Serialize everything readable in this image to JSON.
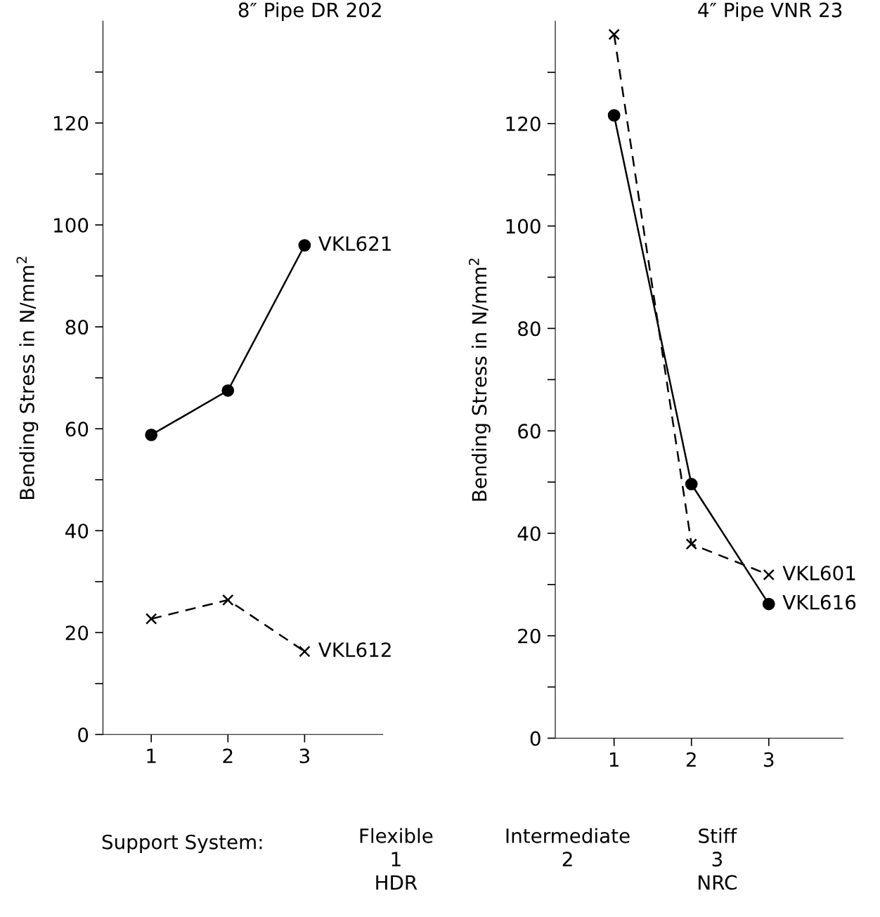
{
  "chart_data": [
    {
      "type": "line",
      "title": "8″ Pipe DR 202",
      "ylabel": "Bending Stress in N/mm$^{2}$",
      "x": [
        1,
        2,
        3
      ],
      "xlim": [
        0.37,
        4.02
      ],
      "xticks": [
        1,
        2,
        3
      ],
      "ylim": [
        0,
        140
      ],
      "yticks": [
        0,
        {
          "value": 10,
          "label": null
        },
        20,
        {
          "value": 30,
          "label": null
        },
        40,
        {
          "value": 50,
          "label": null
        },
        60,
        {
          "value": 70,
          "label": null
        },
        80,
        {
          "value": 90,
          "label": null
        },
        100,
        {
          "value": 110,
          "label": null
        },
        120,
        {
          "value": 130,
          "label": null
        }
      ],
      "grid": false,
      "legend": false,
      "series": [
        {
          "name": "VKL621",
          "color": "#000000",
          "values": [
            58.8,
            67.5,
            96
          ],
          "marker": "circle",
          "line_style": "solid"
        },
        {
          "name": "VKL612",
          "color": "#000000",
          "values": [
            22.7,
            26.4,
            16.3
          ],
          "marker": "cross",
          "line_style": "dashed"
        }
      ],
      "annotations": [
        "Support System:",
        "Flexible\n1\nHDR",
        "Intermediate\n2",
        "Stiff\n3\nNRC"
      ]
    },
    {
      "type": "line",
      "title": "4″ Pipe VNR 23",
      "ylabel": "Bending Stress in N/mm$^{2}$",
      "x": [
        1,
        2,
        3
      ],
      "xlim": [
        0.24,
        3.96
      ],
      "xticks": [
        1,
        2,
        3
      ],
      "ylim": [
        0,
        140
      ],
      "yticks": [
        0,
        {
          "value": 10,
          "label": null
        },
        20,
        {
          "value": 30,
          "label": null
        },
        40,
        {
          "value": 50,
          "label": null
        },
        60,
        {
          "value": 70,
          "label": null
        },
        80,
        {
          "value": 90,
          "label": null
        },
        100,
        {
          "value": 110,
          "label": null
        },
        120,
        {
          "value": 130,
          "label": null
        }
      ],
      "grid": false,
      "legend": false,
      "series": [
        {
          "name": "VKL601",
          "color": "#000000",
          "values": [
            137.4,
            37.9,
            31.9
          ],
          "marker": "cross",
          "line_style": "dashed"
        },
        {
          "name": "VKL616",
          "color": "#000000",
          "values": [
            121.6,
            49.6,
            26.2
          ],
          "marker": "circle",
          "line_style": "solid"
        }
      ]
    }
  ]
}
